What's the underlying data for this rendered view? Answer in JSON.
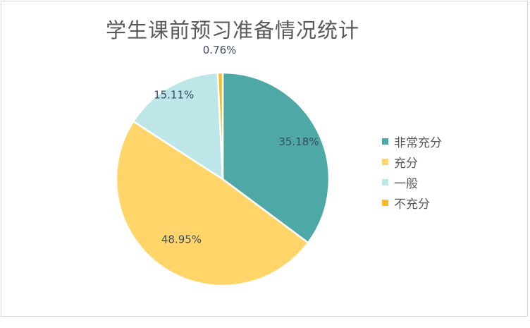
{
  "chart_data": {
    "type": "pie",
    "title": "学生课前预习准备情况统计",
    "categories": [
      "非常充分",
      "充分",
      "一般",
      "不充分"
    ],
    "values": [
      35.18,
      48.95,
      15.11,
      0.76
    ],
    "data_labels": [
      "35.18%",
      "48.95%",
      "15.11%",
      "0.76%"
    ],
    "colors": [
      "#4ea9a6",
      "#ffd56a",
      "#bde6e9",
      "#f7bd1e"
    ],
    "legend_position": "right"
  }
}
